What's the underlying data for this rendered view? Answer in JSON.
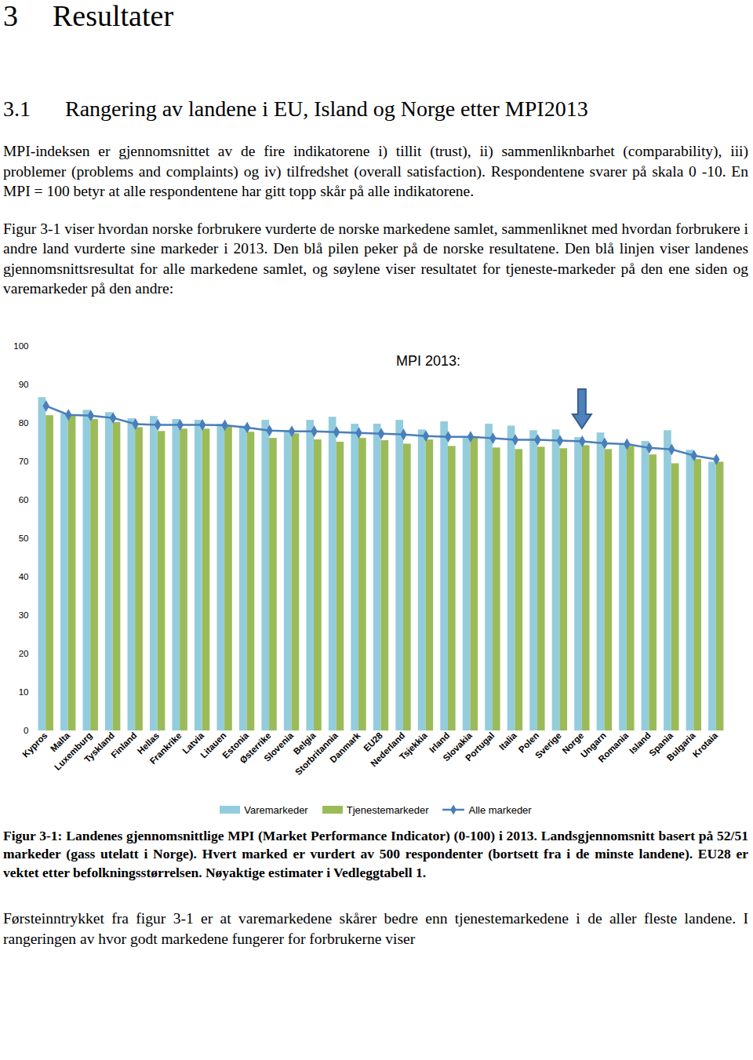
{
  "heading": {
    "number": "3",
    "text": "Resultater"
  },
  "subheading": {
    "number": "3.1",
    "text": "Rangering av landene i EU, Island og Norge etter MPI2013"
  },
  "paragraphs": [
    "MPI-indeksen er gjennomsnittet av de fire indikatorene i) tillit (trust), ii) sammenliknbarhet (comparability), iii) problemer (problems and complaints) og iv) tilfredshet (overall satisfaction). Respondentene svarer på skala 0 -10. En MPI = 100 betyr at alle respondentene har gitt topp skår på alle indikatorene.",
    "Figur 3-1 viser hvordan norske forbrukere vurderte de norske markedene samlet, sammenliknet med hvordan forbrukere i andre land vurderte sine markeder i 2013. Den blå pilen peker på de norske resultatene. Den blå linjen viser landenes gjennomsnittsresultat for alle markedene samlet, og søylene viser resultatet for tjeneste-markeder på den ene siden og varemarkeder på den andre:"
  ],
  "chart_data": {
    "type": "bar",
    "title": "MPI 2013:",
    "categories": [
      "Kypros",
      "Malta",
      "Luxemburg",
      "Tyskland",
      "Finland",
      "Hellas",
      "Frankrike",
      "Latvia",
      "Litauen",
      "Estonia",
      "Østerrike",
      "Slovenia",
      "Belgia",
      "Storbritannia",
      "Danmark",
      "EU28",
      "Nederland",
      "Tsjekkia",
      "Irland",
      "Slovakia",
      "Portugal",
      "Italia",
      "Polen",
      "Sverige",
      "Norge",
      "Ungarn",
      "Romania",
      "Island",
      "Spania",
      "Bulgaria",
      "Krotaia"
    ],
    "series": [
      {
        "name": "Varemarkeder",
        "type": "bar",
        "color": "#93cddd",
        "values": [
          86.7,
          82.4,
          83.4,
          82.8,
          81.2,
          81.8,
          81.0,
          80.8,
          79.8,
          79.3,
          80.8,
          78.1,
          80.8,
          81.6,
          79.8,
          79.8,
          80.8,
          78.3,
          80.4,
          76.5,
          79.8,
          79.3,
          78.1,
          78.3,
          76.3,
          77.5,
          74.4,
          75.3,
          78.1,
          73.0,
          69.9
        ]
      },
      {
        "name": "Tjenestemarkeder",
        "type": "bar",
        "color": "#9bbb59",
        "values": [
          82.0,
          82.0,
          81.0,
          80.2,
          78.9,
          77.9,
          78.5,
          78.5,
          79.3,
          77.7,
          76.1,
          77.3,
          75.7,
          75.1,
          76.1,
          75.5,
          74.6,
          75.7,
          74.0,
          76.3,
          73.6,
          73.2,
          73.8,
          73.4,
          74.2,
          73.2,
          74.0,
          71.8,
          69.5,
          70.6,
          69.9
        ]
      },
      {
        "name": "Alle markeder",
        "type": "line",
        "marker": "diamond",
        "color": "#4a7ebb",
        "values": [
          84.5,
          82.2,
          82.0,
          81.4,
          79.8,
          79.6,
          79.6,
          79.6,
          79.5,
          78.9,
          78.1,
          77.9,
          77.9,
          77.7,
          77.5,
          77.3,
          77.1,
          76.7,
          76.5,
          76.5,
          76.1,
          75.7,
          75.7,
          75.5,
          75.3,
          74.8,
          74.6,
          73.6,
          73.2,
          71.6,
          70.6
        ]
      }
    ],
    "ylim": [
      0,
      100
    ],
    "yticks": [
      0,
      10,
      20,
      30,
      40,
      50,
      60,
      70,
      80,
      90,
      100
    ],
    "grid": false,
    "legend": "bottom",
    "annotations": [
      {
        "x": "Norge",
        "marker": "arrow"
      }
    ]
  },
  "caption": "Figur 3-1: Landenes gjennomsnittlige MPI (Market Performance Indicator) (0-100) i 2013. Landsgjennomsnitt basert på 52/51 markeder (gass utelatt i Norge). Hvert marked er vurdert av 500 respondenter (bortsett fra i de minste landene). EU28 er vektet etter befolkningsstørrelsen. Nøyaktige estimater i Vedleggtabell 1.",
  "closing_text": "Førsteinntrykket fra figur 3-1 er at varemarkedene skårer bedre enn tjenestemarkedene i de aller fleste landene. I rangeringen av hvor godt markedene fungerer for forbrukerne viser"
}
